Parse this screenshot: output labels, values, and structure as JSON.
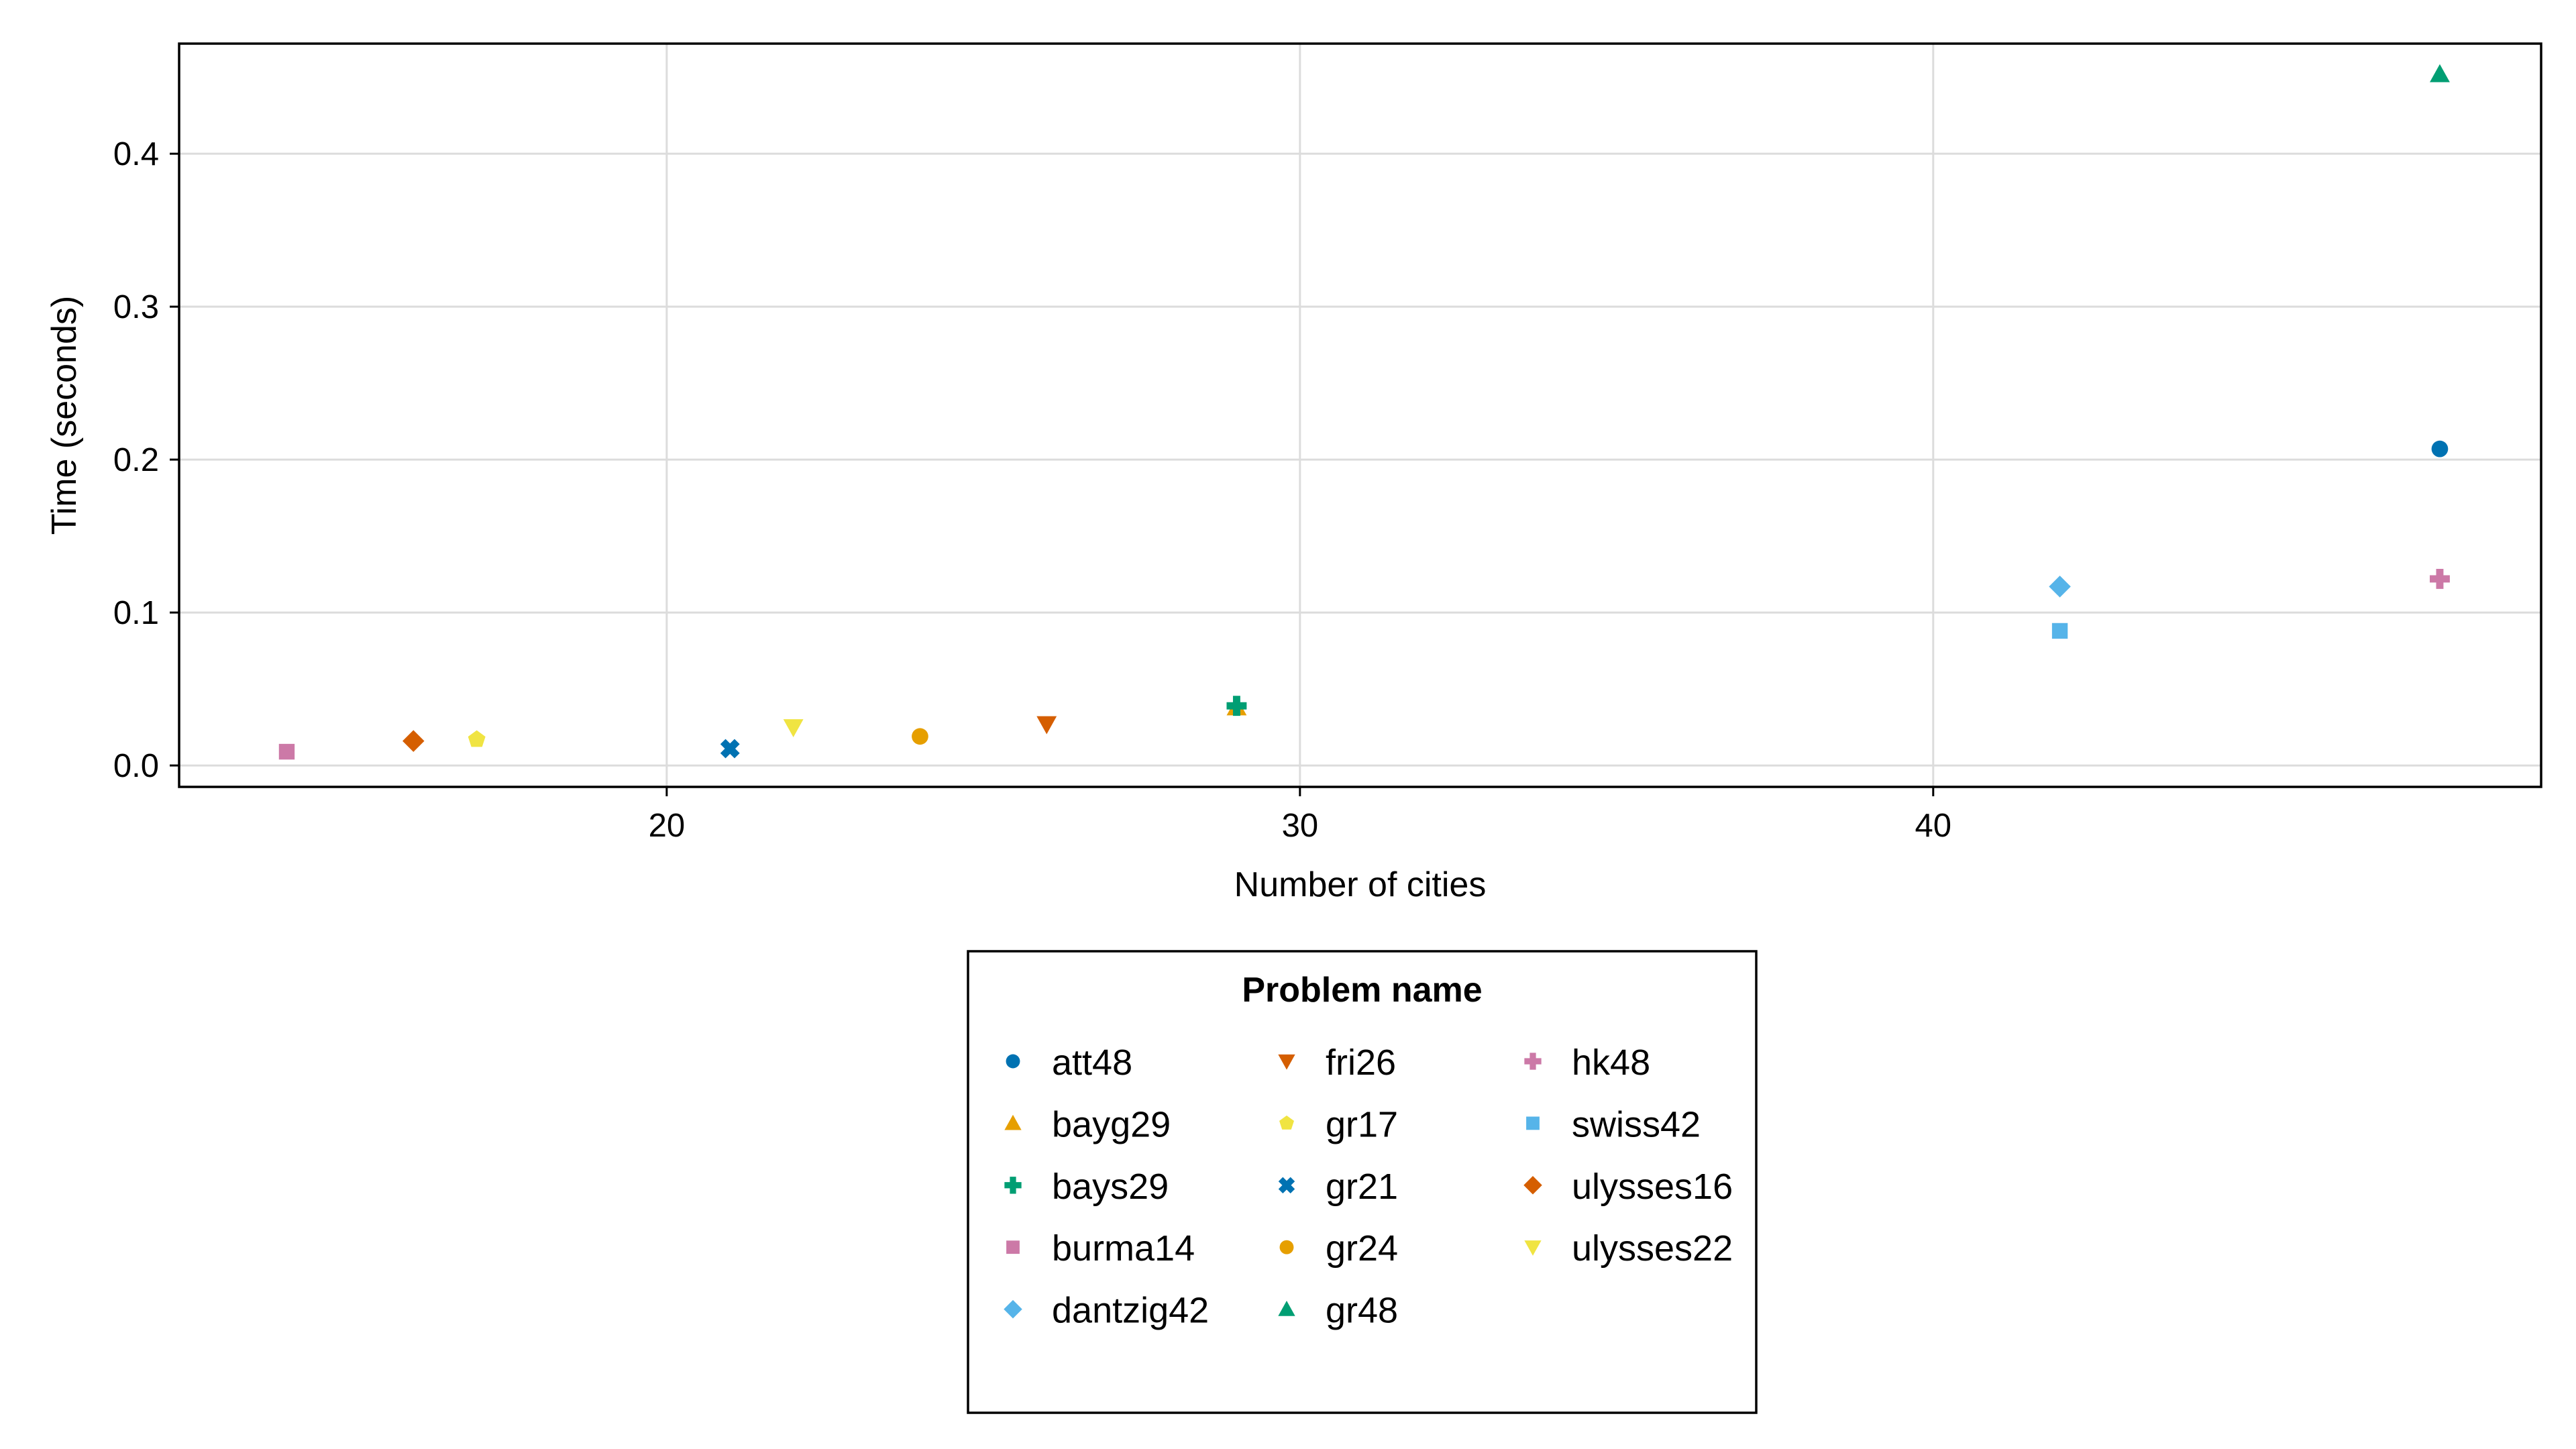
{
  "chart_data": {
    "type": "scatter",
    "title": "",
    "xlabel": "Number of cities",
    "ylabel": "Time (seconds)",
    "xlim": [
      12.3,
      49.6
    ],
    "ylim": [
      -0.014,
      0.472
    ],
    "xticks": [
      20,
      30,
      40
    ],
    "yticks": [
      0.0,
      0.1,
      0.2,
      0.3,
      0.4
    ],
    "xtick_labels": [
      "20",
      "30",
      "40"
    ],
    "ytick_labels": [
      "0.0",
      "0.1",
      "0.2",
      "0.3",
      "0.4"
    ],
    "grid": true,
    "legend": {
      "title": "Problem name",
      "placement": "bottom-center",
      "columns": 3
    },
    "series": [
      {
        "name": "att48",
        "marker": "circle",
        "color": "#0072B2",
        "points": [
          [
            48,
            0.207
          ]
        ]
      },
      {
        "name": "bayg29",
        "marker": "triangle-up",
        "color": "#E69F00",
        "points": [
          [
            29,
            0.038
          ]
        ]
      },
      {
        "name": "bays29",
        "marker": "cross",
        "color": "#009E73",
        "points": [
          [
            29,
            0.039
          ]
        ]
      },
      {
        "name": "burma14",
        "marker": "square",
        "color": "#CC79A7",
        "points": [
          [
            14,
            0.009
          ]
        ]
      },
      {
        "name": "dantzig42",
        "marker": "diamond",
        "color": "#56B4E9",
        "points": [
          [
            42,
            0.117
          ]
        ]
      },
      {
        "name": "fri26",
        "marker": "triangle-down",
        "color": "#D55E00",
        "points": [
          [
            26,
            0.027
          ]
        ]
      },
      {
        "name": "gr17",
        "marker": "pentagon",
        "color": "#F0E442",
        "points": [
          [
            17,
            0.017
          ]
        ]
      },
      {
        "name": "gr21",
        "marker": "x",
        "color": "#0072B2",
        "points": [
          [
            21,
            0.011
          ]
        ]
      },
      {
        "name": "gr24",
        "marker": "circle",
        "color": "#E69F00",
        "points": [
          [
            24,
            0.019
          ]
        ]
      },
      {
        "name": "gr48",
        "marker": "triangle-up",
        "color": "#009E73",
        "points": [
          [
            48,
            0.452
          ]
        ]
      },
      {
        "name": "hk48",
        "marker": "cross",
        "color": "#CC79A7",
        "points": [
          [
            48,
            0.122
          ]
        ]
      },
      {
        "name": "swiss42",
        "marker": "square",
        "color": "#56B4E9",
        "points": [
          [
            42,
            0.088
          ]
        ]
      },
      {
        "name": "ulysses16",
        "marker": "diamond",
        "color": "#D55E00",
        "points": [
          [
            16,
            0.016
          ]
        ]
      },
      {
        "name": "ulysses22",
        "marker": "triangle-down",
        "color": "#F0E442",
        "points": [
          [
            22,
            0.025
          ]
        ]
      }
    ]
  }
}
